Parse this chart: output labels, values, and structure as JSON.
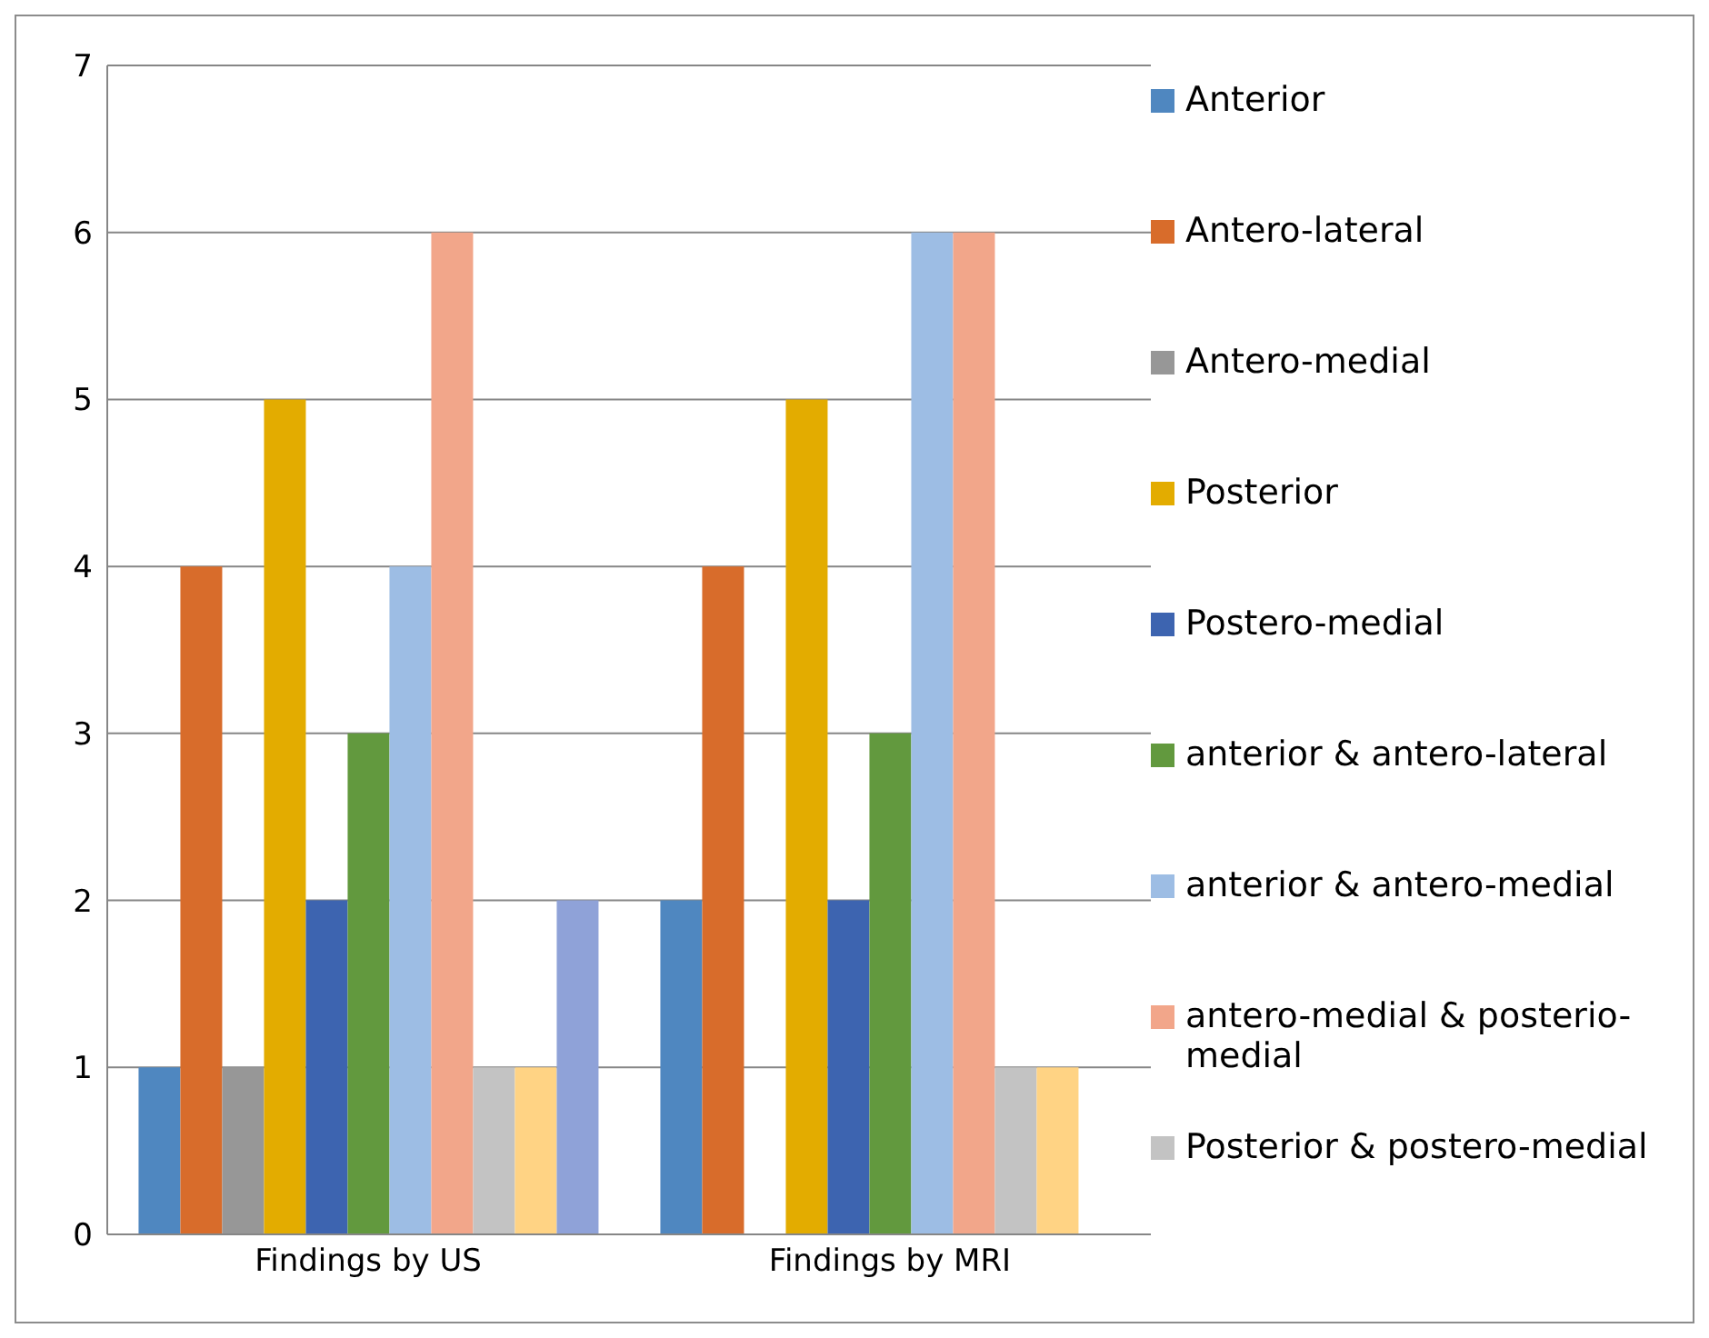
{
  "chart_data": {
    "type": "bar",
    "categories": [
      "Findings by US",
      "Findings by MRI"
    ],
    "series": [
      {
        "name": "Anterior",
        "color": "#4f87c0",
        "values": [
          1,
          2
        ]
      },
      {
        "name": "Antero-lateral",
        "color": "#d86c2b",
        "values": [
          4,
          4
        ]
      },
      {
        "name": "Antero-medial",
        "color": "#979797",
        "values": [
          1,
          0
        ]
      },
      {
        "name": "Posterior",
        "color": "#e3ac00",
        "values": [
          5,
          5
        ]
      },
      {
        "name": "Postero-medial",
        "color": "#3d64b0",
        "values": [
          2,
          2
        ]
      },
      {
        "name": "anterior & antero-lateral",
        "color": "#62993e",
        "values": [
          3,
          3
        ]
      },
      {
        "name": "anterior & antero-medial",
        "color": "#9dbde4",
        "values": [
          4,
          6
        ]
      },
      {
        "name": "antero-medial & posterio-medial",
        "color": "#f2a68a",
        "values": [
          6,
          6
        ]
      },
      {
        "name": "Posterior & postero-medial",
        "color": "#c3c3c3",
        "values": [
          1,
          1
        ]
      },
      {
        "color": "#ffd384",
        "values": [
          1,
          1
        ]
      },
      {
        "color": "#8fa2d8",
        "values": [
          2,
          0
        ]
      }
    ],
    "ylim": [
      0,
      7
    ],
    "yticks": [
      0,
      1,
      2,
      3,
      4,
      5,
      6,
      7
    ],
    "grid": "y",
    "legend": "right"
  }
}
